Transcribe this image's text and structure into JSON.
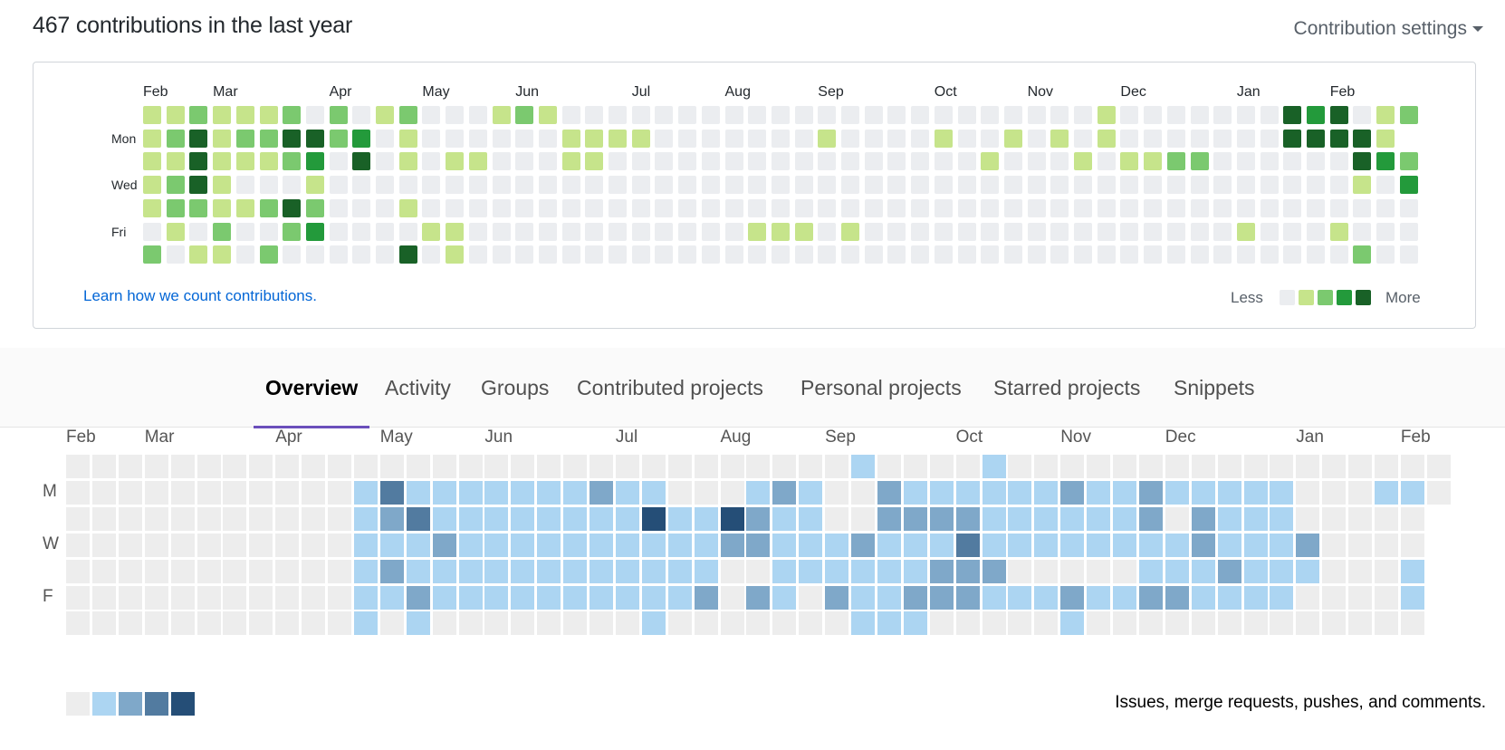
{
  "github": {
    "title": "467 contributions in the last year",
    "settings_label": "Contribution settings",
    "months": [
      "Feb",
      "Mar",
      "Apr",
      "May",
      "Jun",
      "Jul",
      "Aug",
      "Sep",
      "Oct",
      "Nov",
      "Dec",
      "Jan",
      "Feb"
    ],
    "month_weeks": [
      0,
      3,
      8,
      12,
      16,
      21,
      25,
      29,
      34,
      38,
      42,
      47,
      51
    ],
    "days": [
      "Mon",
      "Wed",
      "Fri"
    ],
    "levels": [
      "1121112020120001210000000000000000000000010000000434012",
      "1241224423010000001111000000010000100101010000000444415",
      "1141112304010110001100000000000000001000101122000000432",
      "1241000100000000000000000000000000000000000000000000103",
      "1221124200010000000000000000000000000000000000000000000",
      "0102002300001100000000000011101000000000000000010001000",
      "2011020000040100000000000000000000000000000000000000200"
    ],
    "colors": [
      "#ebedf0",
      "#c6e48b",
      "#7bc96f",
      "#239a3b",
      "#196127"
    ],
    "learn_link": "Learn how we count contributions.",
    "legend_less": "Less",
    "legend_more": "More"
  },
  "tabs": [
    {
      "label": "Overview",
      "active": true
    },
    {
      "label": "Activity",
      "active": false
    },
    {
      "label": "Groups",
      "active": false
    },
    {
      "label": "Contributed projects",
      "active": false
    },
    {
      "label": "Personal projects",
      "active": false
    },
    {
      "label": "Starred projects",
      "active": false
    },
    {
      "label": "Snippets",
      "active": false
    }
  ],
  "gitlab": {
    "months": [
      "Feb",
      "Mar",
      "Apr",
      "May",
      "Jun",
      "Jul",
      "Aug",
      "Sep",
      "Oct",
      "Nov",
      "Dec",
      "Jan",
      "Feb"
    ],
    "month_weeks": [
      0,
      3,
      8,
      12,
      16,
      21,
      25,
      29,
      34,
      38,
      42,
      47,
      51
    ],
    "days": [
      "M",
      "W",
      "F"
    ],
    "levels": [
      "00000000000000000000000000000010000100000000000000000",
      "00000000000131111111211000121002111111211211111000110",
      "00000000000123111111114114211002222111111202111000000",
      "00000000000111211111111112211121113111111112111200000",
      "00000000000121111111111110011111122200000111211100010",
      "00000000000112111111111120210211222111211221111000010",
      "00000000000101000000001000000011100000100000000000000"
    ],
    "row_counts": [
      53,
      53,
      52,
      52,
      52,
      52,
      52
    ],
    "colors": [
      "#ededed",
      "#acd5f2",
      "#7fa8c9",
      "#527ba0",
      "#254e77"
    ],
    "description": "Issues, merge requests, pushes, and comments."
  }
}
